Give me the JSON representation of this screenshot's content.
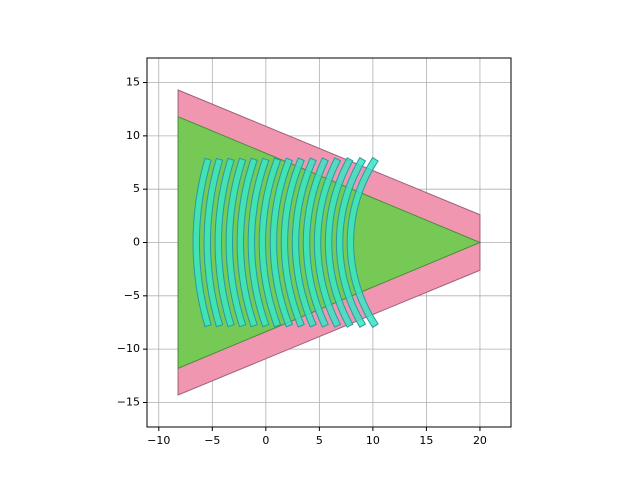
{
  "chart_data": {
    "type": "patches",
    "xlim": [
      -11.1,
      22.9
    ],
    "ylim": [
      -17.3,
      17.3
    ],
    "xticks": [
      {
        "value": -10,
        "label": "−10"
      },
      {
        "value": -5,
        "label": "−5"
      },
      0,
      5,
      10,
      15,
      20
    ],
    "yticks": [
      {
        "value": -15,
        "label": "−15"
      },
      {
        "value": -10,
        "label": "−10"
      },
      {
        "value": -5,
        "label": "−5"
      },
      0,
      5,
      10,
      15
    ],
    "grid": true,
    "polygons": [
      {
        "color": "#f096b0",
        "edgecolor": "#a0607a",
        "points": [
          [
            -8.2,
            14.3
          ],
          [
            20,
            2.6
          ],
          [
            20,
            -2.6
          ],
          [
            -8.2,
            -14.3
          ]
        ]
      },
      {
        "color": "#76c955",
        "edgecolor": "#4d8a3c",
        "points": [
          [
            -8.2,
            11.8
          ],
          [
            20,
            0
          ],
          [
            -8.2,
            -11.8
          ]
        ]
      }
    ],
    "arcs": {
      "color": "#38e6c4",
      "edgecolor": "#2a9a9e",
      "x": [
        -6.5,
        -5.47,
        -4.44,
        -3.41,
        -2.38,
        -1.35,
        -0.32,
        0.71,
        1.74,
        2.77,
        3.8,
        4.83,
        5.86,
        6.89,
        7.9
      ],
      "radius": [
        28.2,
        27.2,
        26.2,
        25.2,
        24.2,
        23.2,
        22.2,
        21.2,
        20.2,
        19.2,
        18.2,
        17.2,
        16.2,
        15.2,
        14.2
      ],
      "half_height": 7.8,
      "width": 0.6
    }
  }
}
